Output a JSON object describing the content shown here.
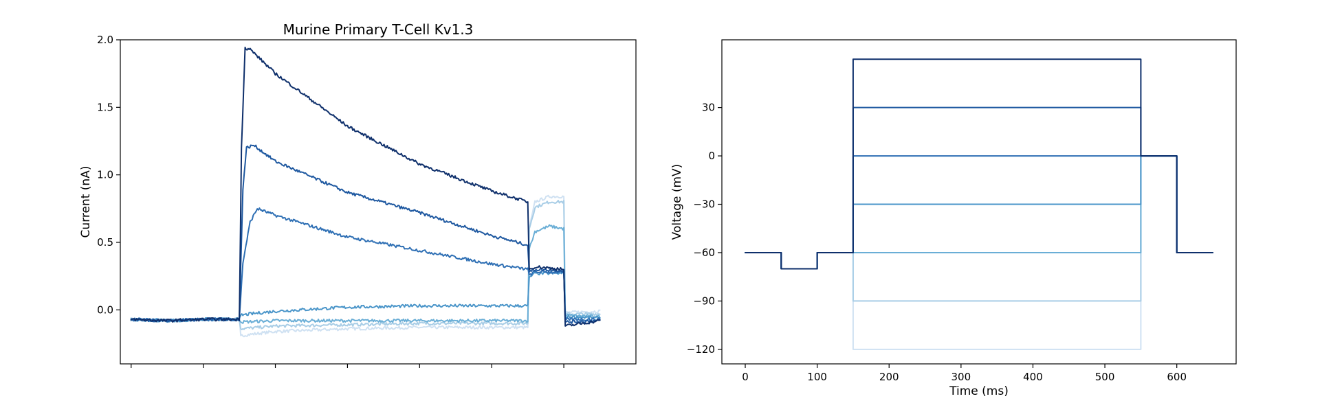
{
  "chart_data": [
    {
      "type": "line",
      "title": "Murine Primary T-Cell Kv1.3",
      "xlabel": "",
      "ylabel": "Current (nA)",
      "xlim": [
        -15,
        700
      ],
      "ylim": [
        -0.4,
        2.0
      ],
      "yticks": [
        0.0,
        0.5,
        1.0,
        1.5,
        2.0
      ],
      "ytick_labels": [
        "0.0",
        "0.5",
        "1.0",
        "1.5",
        "2.0"
      ],
      "xticks": [
        0,
        100,
        200,
        300,
        400,
        500,
        600
      ],
      "xtick_labels": [
        "",
        "",
        "",
        "",
        "",
        "",
        ""
      ],
      "series": [
        {
          "name": "-120 mV",
          "color": "#cfe1f2",
          "x": [
            0,
            50,
            100,
            150,
            152,
            200,
            300,
            400,
            500,
            550,
            552,
            560,
            580,
            600,
            602,
            650
          ],
          "y": [
            -0.07,
            -0.08,
            -0.07,
            -0.07,
            -0.19,
            -0.16,
            -0.14,
            -0.13,
            -0.13,
            -0.13,
            0.6,
            0.8,
            0.84,
            0.84,
            -0.02,
            -0.01
          ]
        },
        {
          "name": "-90 mV",
          "color": "#a8cde6",
          "x": [
            0,
            50,
            100,
            150,
            152,
            200,
            300,
            400,
            500,
            550,
            552,
            560,
            580,
            600,
            602,
            650
          ],
          "y": [
            -0.07,
            -0.08,
            -0.07,
            -0.07,
            -0.14,
            -0.12,
            -0.11,
            -0.1,
            -0.1,
            -0.1,
            0.6,
            0.76,
            0.8,
            0.8,
            -0.03,
            -0.03
          ]
        },
        {
          "name": "-60 mV",
          "color": "#6aaed6",
          "x": [
            0,
            50,
            100,
            150,
            152,
            200,
            300,
            400,
            500,
            550,
            552,
            560,
            580,
            600,
            602,
            650
          ],
          "y": [
            -0.07,
            -0.08,
            -0.07,
            -0.07,
            -0.09,
            -0.08,
            -0.08,
            -0.08,
            -0.08,
            -0.08,
            0.45,
            0.58,
            0.62,
            0.6,
            -0.04,
            -0.05
          ]
        },
        {
          "name": "-30 mV",
          "color": "#4a95c9",
          "x": [
            0,
            50,
            100,
            150,
            152,
            165,
            200,
            300,
            400,
            500,
            550,
            552,
            560,
            580,
            600,
            602,
            650
          ],
          "y": [
            -0.07,
            -0.08,
            -0.07,
            -0.07,
            -0.04,
            -0.03,
            -0.01,
            0.02,
            0.03,
            0.03,
            0.03,
            0.24,
            0.27,
            0.27,
            0.27,
            -0.05,
            -0.06
          ]
        },
        {
          "name": "0 mV",
          "color": "#2e6fb4",
          "x": [
            0,
            50,
            100,
            150,
            155,
            165,
            175,
            200,
            300,
            400,
            500,
            550,
            552,
            560,
            600,
            602,
            650
          ],
          "y": [
            -0.07,
            -0.08,
            -0.07,
            -0.07,
            0.35,
            0.65,
            0.75,
            0.7,
            0.54,
            0.44,
            0.34,
            0.3,
            0.26,
            0.28,
            0.28,
            -0.07,
            -0.07
          ]
        },
        {
          "name": "+30 mV",
          "color": "#1e58a0",
          "x": [
            0,
            50,
            100,
            150,
            155,
            160,
            170,
            200,
            300,
            400,
            500,
            550,
            552,
            560,
            600,
            602,
            650
          ],
          "y": [
            -0.07,
            -0.08,
            -0.07,
            -0.07,
            0.9,
            1.2,
            1.22,
            1.1,
            0.87,
            0.72,
            0.55,
            0.48,
            0.28,
            0.3,
            0.29,
            -0.09,
            -0.08
          ]
        },
        {
          "name": "+60 mV",
          "color": "#0e2f6b",
          "x": [
            0,
            50,
            100,
            150,
            153,
            158,
            165,
            200,
            300,
            400,
            500,
            550,
            552,
            560,
            600,
            602,
            650
          ],
          "y": [
            -0.07,
            -0.08,
            -0.07,
            -0.07,
            1.2,
            1.94,
            1.93,
            1.75,
            1.36,
            1.08,
            0.88,
            0.8,
            0.3,
            0.32,
            0.3,
            -0.12,
            -0.08
          ]
        }
      ]
    },
    {
      "type": "line",
      "title": "",
      "xlabel": "Time (ms)",
      "ylabel": "Voltage (mV)",
      "xlim": [
        -32.5,
        682.5
      ],
      "ylim": [
        -129,
        72
      ],
      "xticks": [
        0,
        100,
        200,
        300,
        400,
        500,
        600
      ],
      "xtick_labels": [
        "0",
        "100",
        "200",
        "300",
        "400",
        "500",
        "600"
      ],
      "yticks": [
        -120,
        -90,
        -60,
        -30,
        0,
        30
      ],
      "ytick_labels": [
        "−120",
        "−90",
        "−60",
        "−30",
        "0",
        "30"
      ],
      "series": [
        {
          "name": "-120 mV",
          "color": "#cfe1f2",
          "x": [
            0,
            50,
            50,
            100,
            100,
            150,
            150,
            550,
            550,
            600,
            600,
            650
          ],
          "y": [
            -60,
            -60,
            -70,
            -70,
            -60,
            -60,
            -120,
            -120,
            0,
            0,
            -60,
            -60
          ]
        },
        {
          "name": "-90 mV",
          "color": "#a8cde6",
          "x": [
            0,
            50,
            50,
            100,
            100,
            150,
            150,
            550,
            550,
            600,
            600,
            650
          ],
          "y": [
            -60,
            -60,
            -70,
            -70,
            -60,
            -60,
            -90,
            -90,
            0,
            0,
            -60,
            -60
          ]
        },
        {
          "name": "-60 mV",
          "color": "#6aaed6",
          "x": [
            0,
            50,
            50,
            100,
            100,
            150,
            150,
            550,
            550,
            600,
            600,
            650
          ],
          "y": [
            -60,
            -60,
            -70,
            -70,
            -60,
            -60,
            -60,
            -60,
            0,
            0,
            -60,
            -60
          ]
        },
        {
          "name": "-30 mV",
          "color": "#4a95c9",
          "x": [
            0,
            50,
            50,
            100,
            100,
            150,
            150,
            550,
            550,
            600,
            600,
            650
          ],
          "y": [
            -60,
            -60,
            -70,
            -70,
            -60,
            -60,
            -30,
            -30,
            0,
            0,
            -60,
            -60
          ]
        },
        {
          "name": "0 mV",
          "color": "#2e6fb4",
          "x": [
            0,
            50,
            50,
            100,
            100,
            150,
            150,
            550,
            550,
            600,
            600,
            650
          ],
          "y": [
            -60,
            -60,
            -70,
            -70,
            -60,
            -60,
            0,
            0,
            0,
            0,
            -60,
            -60
          ]
        },
        {
          "name": "+30 mV",
          "color": "#1e58a0",
          "x": [
            0,
            50,
            50,
            100,
            100,
            150,
            150,
            550,
            550,
            600,
            600,
            650
          ],
          "y": [
            -60,
            -60,
            -70,
            -70,
            -60,
            -60,
            30,
            30,
            0,
            0,
            -60,
            -60
          ]
        },
        {
          "name": "+60 mV",
          "color": "#0e2f6b",
          "x": [
            0,
            50,
            50,
            100,
            100,
            150,
            150,
            550,
            550,
            600,
            600,
            650
          ],
          "y": [
            -60,
            -60,
            -70,
            -70,
            -60,
            -60,
            60,
            60,
            0,
            0,
            -60,
            -60
          ]
        }
      ]
    }
  ]
}
